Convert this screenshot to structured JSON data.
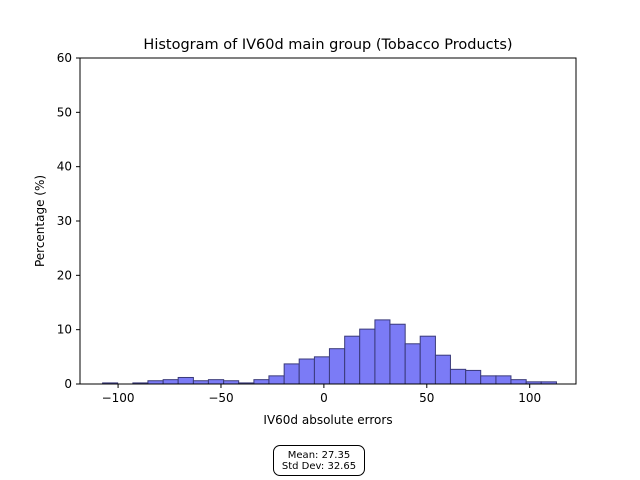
{
  "chart_data": {
    "type": "bar",
    "title": "Histogram of IV60d main group (Tobacco Products)",
    "xlabel": "IV60d absolute errors",
    "ylabel": "Percentage (%)",
    "xlim": [
      -118.5,
      122.5
    ],
    "ylim": [
      0,
      60
    ],
    "xticks": [
      -100,
      -50,
      0,
      50,
      100
    ],
    "yticks": [
      0,
      10,
      20,
      30,
      40,
      50,
      60
    ],
    "xtick_labels": [
      "−100",
      "−50",
      "0",
      "50",
      "100"
    ],
    "ytick_labels": [
      "0",
      "10",
      "20",
      "30",
      "40",
      "50",
      "60"
    ],
    "bar_color": "#7b7bf6",
    "edge_color": "#3a3a7a",
    "bins": [
      {
        "left": -107.5,
        "right": -100.2,
        "value": 0.2
      },
      {
        "left": -100.2,
        "right": -92.8,
        "value": 0.0
      },
      {
        "left": -92.8,
        "right": -85.5,
        "value": 0.2
      },
      {
        "left": -85.5,
        "right": -78.1,
        "value": 0.6
      },
      {
        "left": -78.1,
        "right": -70.8,
        "value": 0.8
      },
      {
        "left": -70.8,
        "right": -63.4,
        "value": 1.2
      },
      {
        "left": -63.4,
        "right": -56.1,
        "value": 0.6
      },
      {
        "left": -56.1,
        "right": -48.7,
        "value": 0.8
      },
      {
        "left": -48.7,
        "right": -41.4,
        "value": 0.6
      },
      {
        "left": -41.4,
        "right": -34.0,
        "value": 0.2
      },
      {
        "left": -34.0,
        "right": -26.7,
        "value": 0.8
      },
      {
        "left": -26.7,
        "right": -19.3,
        "value": 1.5
      },
      {
        "left": -19.3,
        "right": -12.0,
        "value": 3.7
      },
      {
        "left": -12.0,
        "right": -4.6,
        "value": 4.6
      },
      {
        "left": -4.6,
        "right": 2.7,
        "value": 5.0
      },
      {
        "left": 2.7,
        "right": 10.1,
        "value": 6.5
      },
      {
        "left": 10.1,
        "right": 17.4,
        "value": 8.8
      },
      {
        "left": 17.4,
        "right": 24.8,
        "value": 10.1
      },
      {
        "left": 24.8,
        "right": 32.1,
        "value": 11.8
      },
      {
        "left": 32.1,
        "right": 39.5,
        "value": 11.0
      },
      {
        "left": 39.5,
        "right": 46.8,
        "value": 7.4
      },
      {
        "left": 46.8,
        "right": 54.2,
        "value": 8.8
      },
      {
        "left": 54.2,
        "right": 61.5,
        "value": 5.3
      },
      {
        "left": 61.5,
        "right": 68.9,
        "value": 2.7
      },
      {
        "left": 68.9,
        "right": 76.2,
        "value": 2.5
      },
      {
        "left": 76.2,
        "right": 83.6,
        "value": 1.5
      },
      {
        "left": 83.6,
        "right": 90.9,
        "value": 1.5
      },
      {
        "left": 90.9,
        "right": 98.3,
        "value": 0.8
      },
      {
        "left": 98.3,
        "right": 105.6,
        "value": 0.4
      },
      {
        "left": 105.6,
        "right": 113.0,
        "value": 0.4
      }
    ],
    "stats": {
      "mean": "Mean: 27.35",
      "std": "Std Dev: 32.65"
    },
    "grid": false
  }
}
